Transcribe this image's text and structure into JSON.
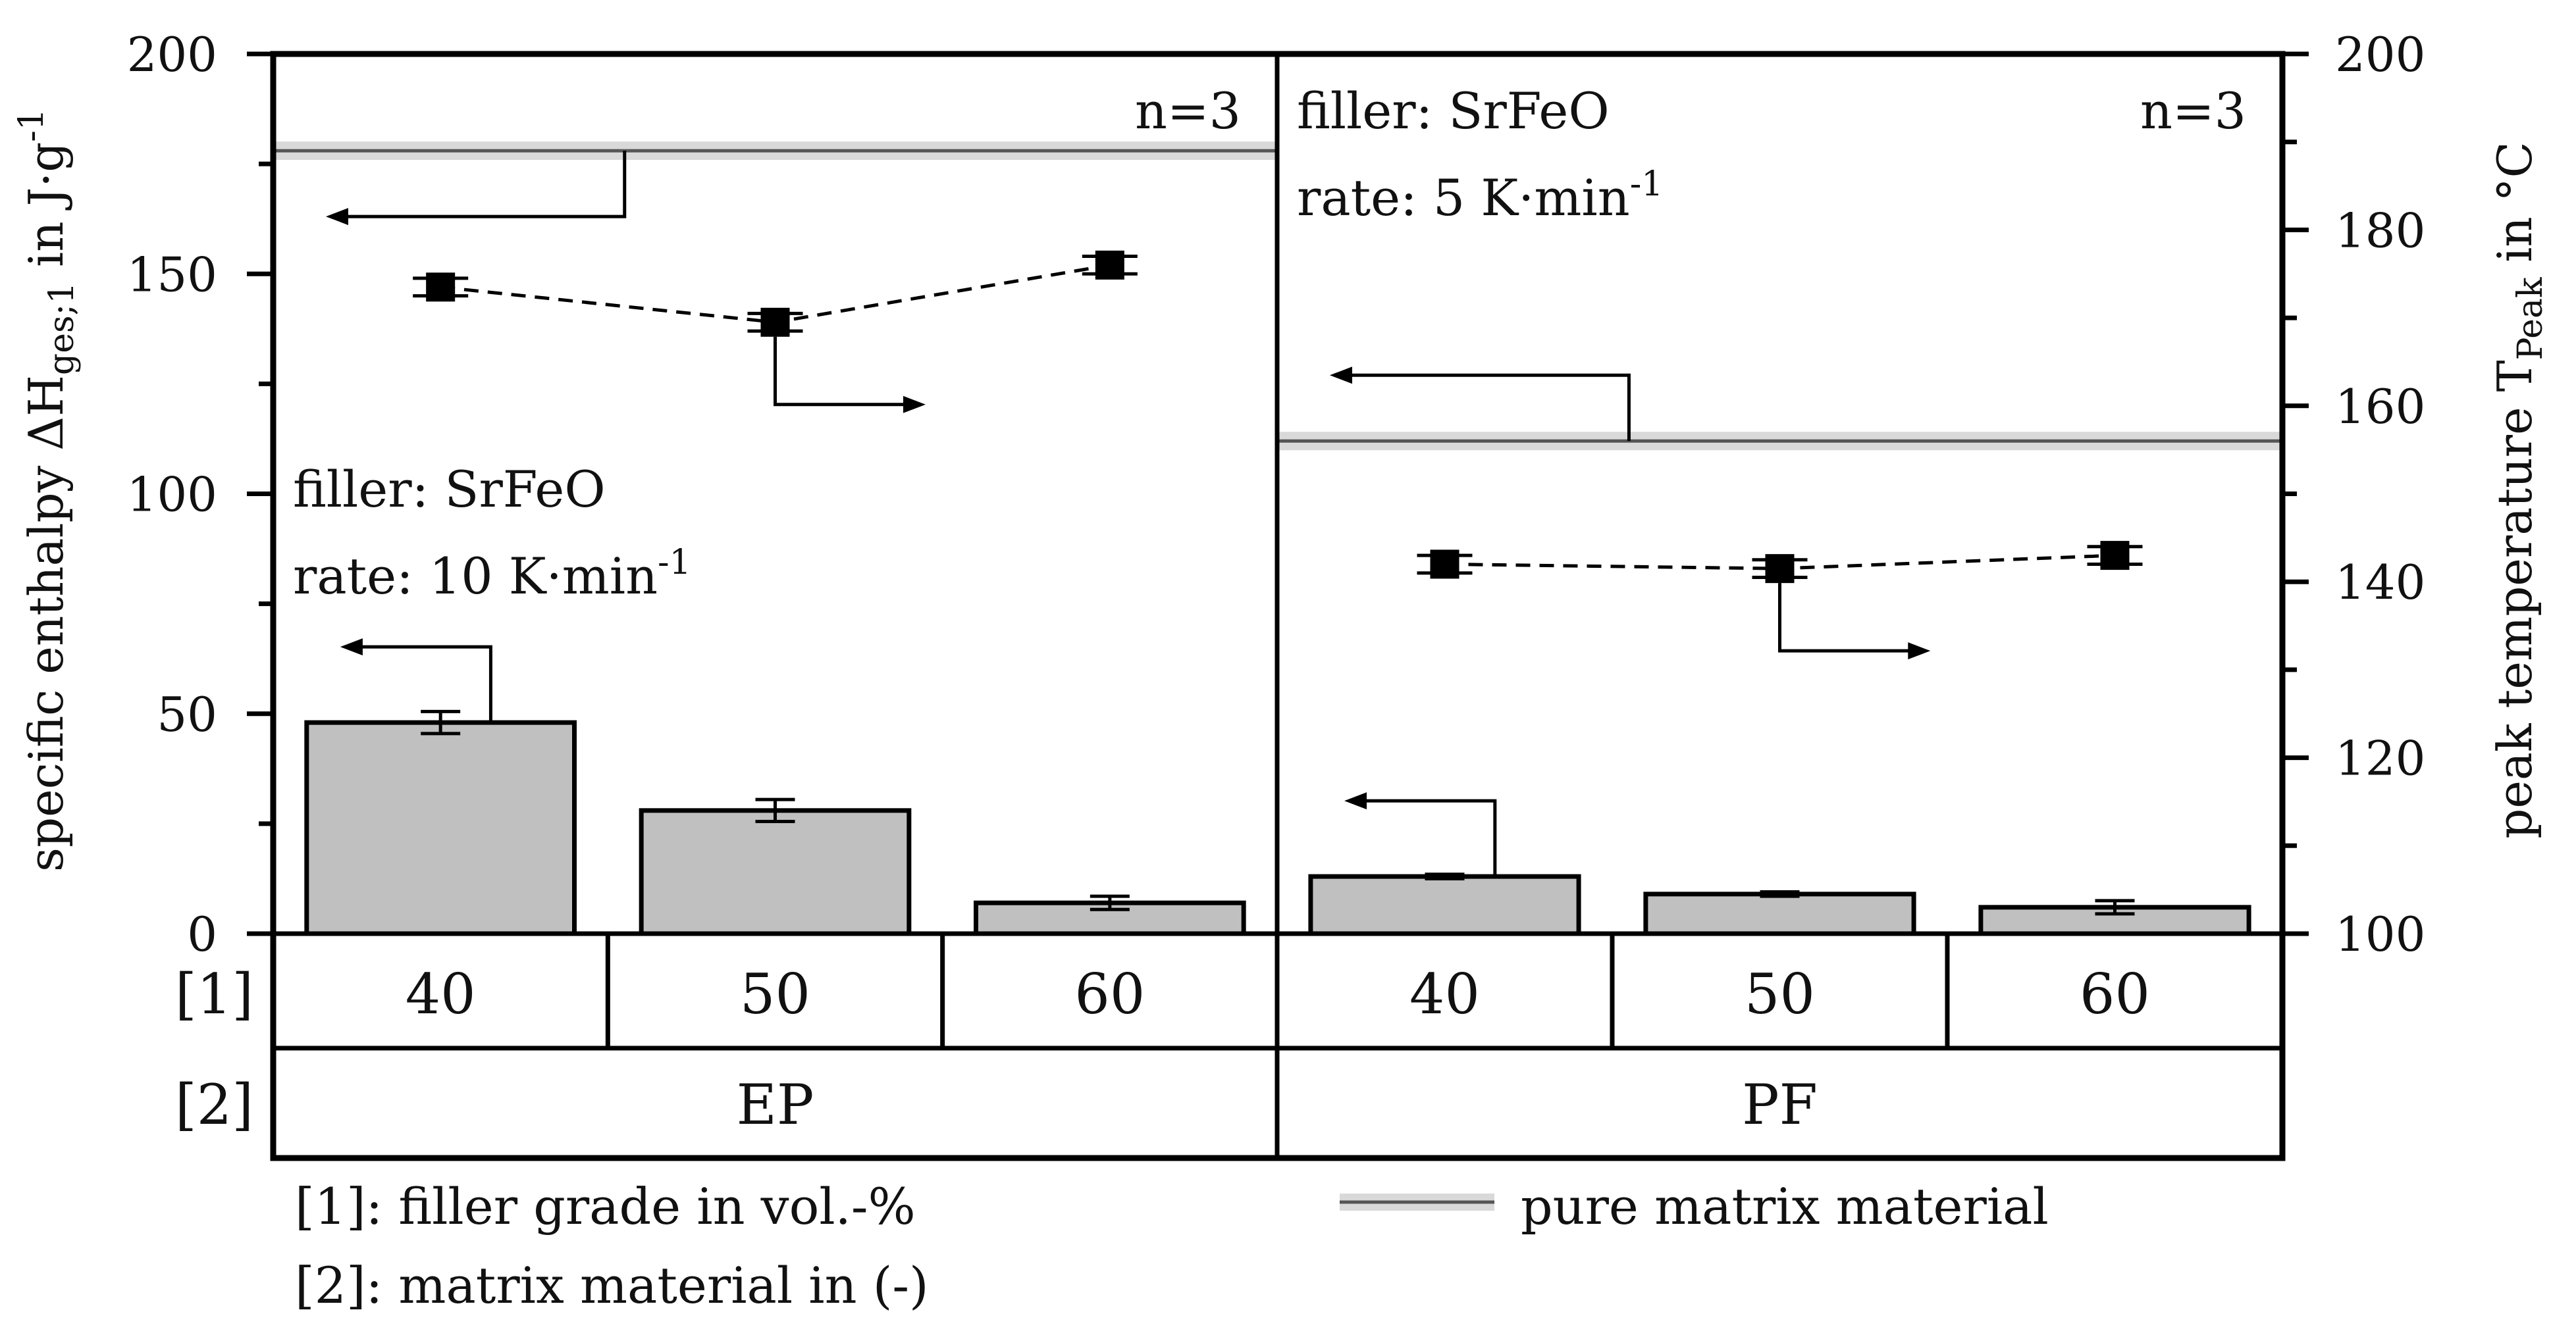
{
  "chart_data": {
    "type": "bar",
    "left_axis": {
      "title_main": "specific enthalpy ΔH",
      "title_sub": "ges;1",
      "title_tail": " in J·g",
      "title_sup": "-1",
      "range": [
        0,
        200
      ],
      "ticks": [
        0,
        50,
        100,
        150,
        200
      ]
    },
    "right_axis": {
      "title_main": "peak temperature T",
      "title_sub": "Peak",
      "title_tail": " in °C",
      "range": [
        100,
        200
      ],
      "ticks": [
        100,
        120,
        140,
        160,
        180,
        200
      ]
    },
    "row_labels": {
      "row1": "[1]",
      "row2": "[2]"
    },
    "panels": [
      {
        "matrix": "EP",
        "n_label": "n=3",
        "filler_label": "filler: SrFeO",
        "rate_label": "rate: 10 K·min",
        "rate_sup": "-1",
        "reference_enthalpy": 178,
        "categories": [
          "40",
          "50",
          "60"
        ],
        "enthalpy": [
          48,
          28,
          7
        ],
        "enthalpy_err": [
          2.5,
          2.5,
          1.5
        ],
        "peak_temp": [
          173.5,
          169.5,
          176
        ],
        "peak_temp_err": [
          1,
          1,
          1
        ]
      },
      {
        "matrix": "PF",
        "n_label": "n=3",
        "filler_label": "filler: SrFeO",
        "rate_label": "rate: 5 K·min",
        "rate_sup": "-1",
        "reference_enthalpy": 112,
        "categories": [
          "40",
          "50",
          "60"
        ],
        "enthalpy": [
          13,
          9,
          6
        ],
        "enthalpy_err": [
          0.5,
          0.5,
          1.5
        ],
        "peak_temp": [
          142,
          141.5,
          143
        ],
        "peak_temp_err": [
          1,
          1,
          1
        ]
      }
    ],
    "legend": {
      "note1": "[1]: filler grade in vol.-%",
      "note2": "[2]: matrix material in (-)",
      "reference": "pure matrix material"
    }
  }
}
